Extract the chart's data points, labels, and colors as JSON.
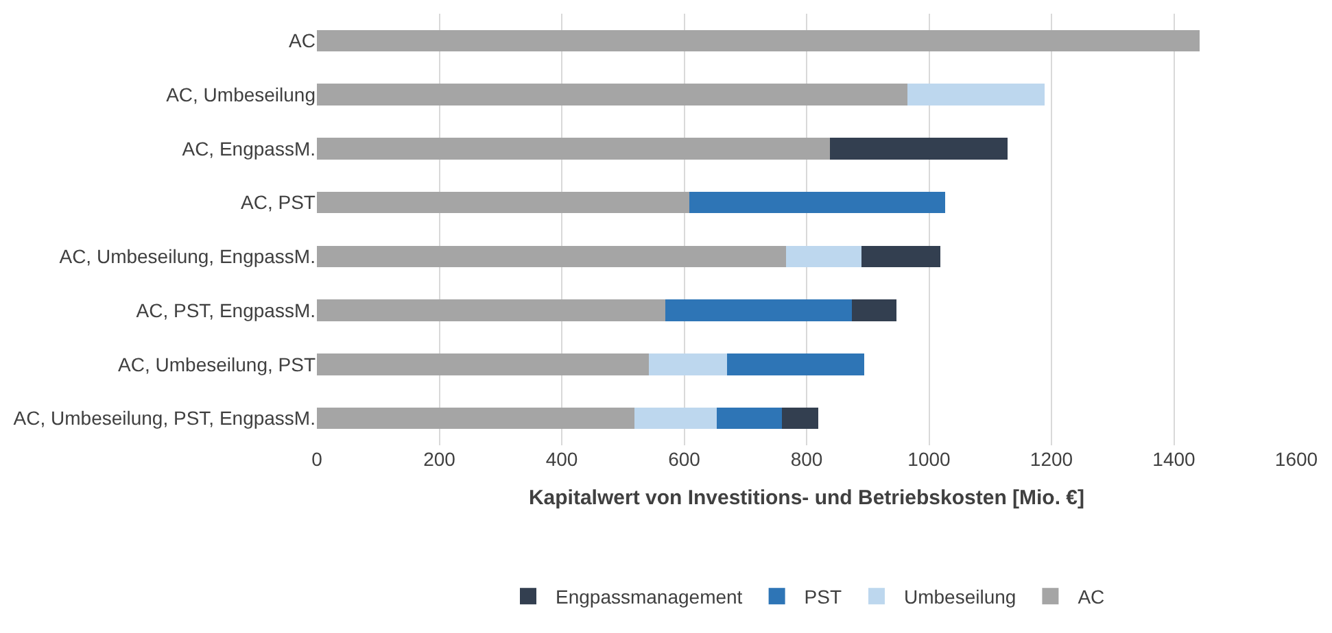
{
  "chart_data": {
    "type": "bar",
    "orientation": "horizontal",
    "stacked": true,
    "categories": [
      "AC",
      "AC, Umbeseilung",
      "AC, EngpassM.",
      "AC, PST",
      "AC, Umbeseilung, EngpassM.",
      "AC, PST, EngpassM.",
      "AC, Umbeseilung, PST",
      "AC, Umbeseilung, PST, EngpassM."
    ],
    "series": [
      {
        "name": "AC",
        "color": "#a5a5a5",
        "values": [
          1442,
          965,
          838,
          608,
          766,
          569,
          542,
          519
        ]
      },
      {
        "name": "Umbeseilung",
        "color": "#bdd7ee",
        "values": [
          null,
          224,
          null,
          null,
          124,
          null,
          128,
          134
        ]
      },
      {
        "name": "PST",
        "color": "#2e75b6",
        "values": [
          null,
          null,
          null,
          418,
          null,
          305,
          224,
          107
        ]
      },
      {
        "name": "Engpassmanagement",
        "color": "#333f50",
        "values": [
          null,
          null,
          290,
          null,
          128,
          73,
          null,
          59
        ]
      }
    ],
    "xlabel": "Kapitalwert von Investitions- und Betriebskosten [Mio. €]",
    "xlim": [
      0,
      1600
    ],
    "xticks": [
      0,
      200,
      400,
      600,
      800,
      1000,
      1200,
      1400,
      1600
    ],
    "grid": "x",
    "legend": "bottom"
  }
}
